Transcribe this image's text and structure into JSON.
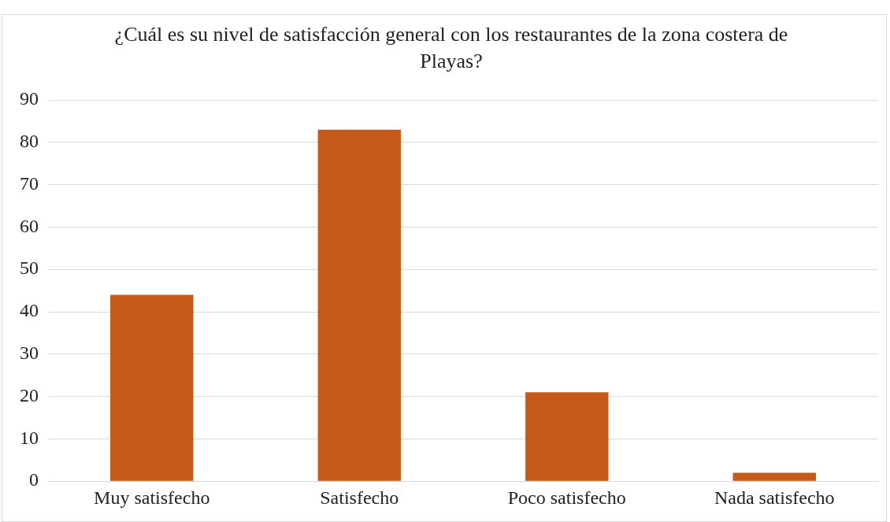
{
  "chart_data": {
    "type": "bar",
    "title": "¿Cuál es su nivel de satisfacción general con los restaurantes de la zona costera de Playas?",
    "categories": [
      "Muy satisfecho",
      "Satisfecho",
      "Poco satisfecho",
      "Nada satisfecho"
    ],
    "values": [
      44,
      83,
      21,
      2
    ],
    "color": "#c55a1a",
    "ylim": [
      0,
      90
    ],
    "yticks": [
      0,
      10,
      20,
      30,
      40,
      50,
      60,
      70,
      80,
      90
    ],
    "grid": "y",
    "legend": false
  }
}
